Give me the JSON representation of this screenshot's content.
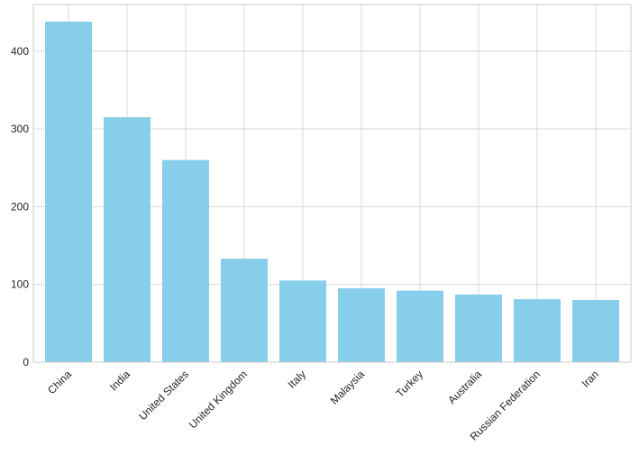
{
  "chart_data": {
    "type": "bar",
    "title": "",
    "xlabel": "",
    "ylabel": "",
    "categories": [
      "China",
      "India",
      "United States",
      "United Kingdom",
      "Italy",
      "Malaysia",
      "Turkey",
      "Australia",
      "Russian Federation",
      "Iran"
    ],
    "values": [
      438,
      315,
      260,
      133,
      105,
      95,
      92,
      87,
      81,
      80
    ],
    "ylim": [
      0,
      460
    ],
    "yticks": [
      0,
      100,
      200,
      300,
      400
    ],
    "grid": true,
    "bar_color": "#87ceeb"
  }
}
